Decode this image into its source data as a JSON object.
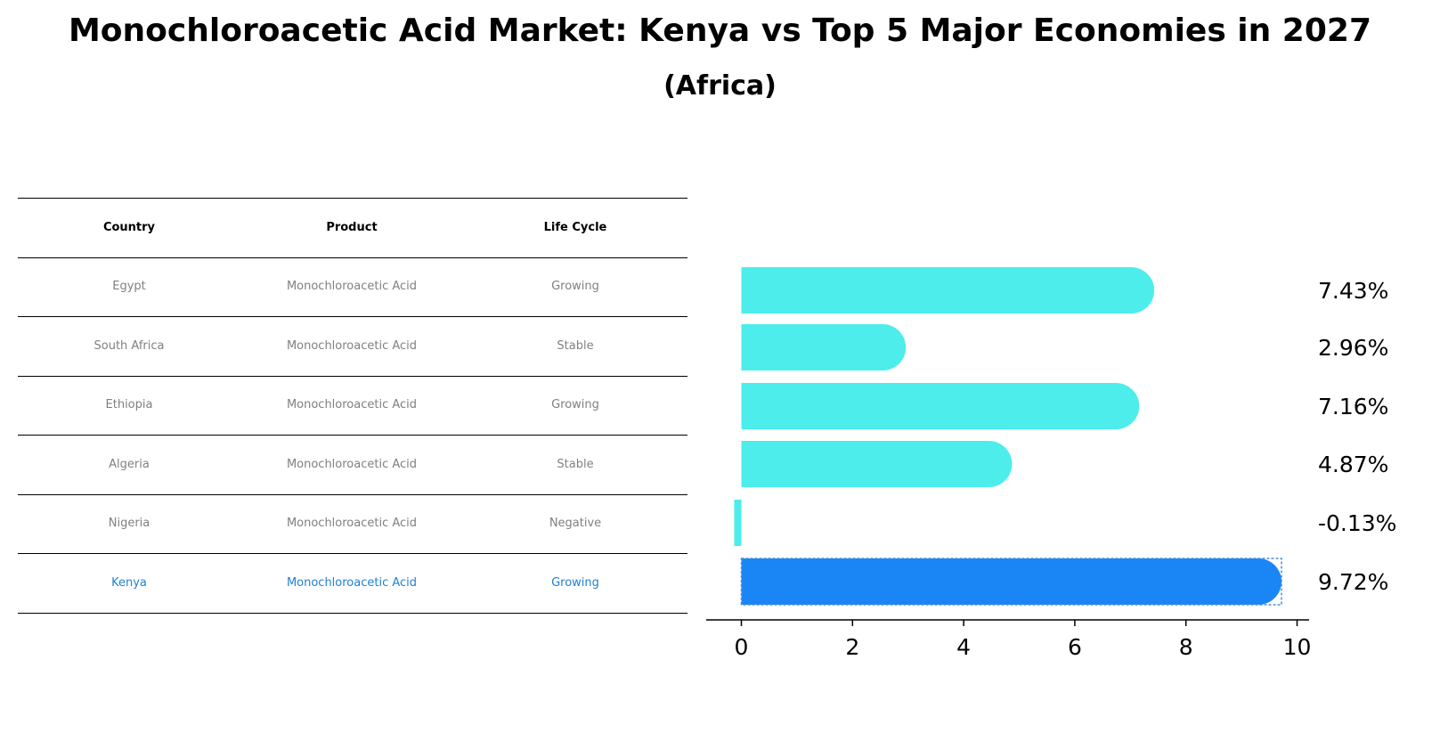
{
  "title": "Monochloroacetic Acid Market: Kenya vs Top 5 Major Economies in 2027",
  "subtitle": "(Africa)",
  "table": {
    "headers": [
      "Country",
      "Product",
      "Life Cycle"
    ],
    "rows": [
      {
        "country": "Egypt",
        "product": "Monochloroacetic Acid",
        "life_cycle": "Growing"
      },
      {
        "country": "South Africa",
        "product": "Monochloroacetic Acid",
        "life_cycle": "Stable"
      },
      {
        "country": "Ethiopia",
        "product": "Monochloroacetic Acid",
        "life_cycle": "Growing"
      },
      {
        "country": "Algeria",
        "product": "Monochloroacetic Acid",
        "life_cycle": "Stable"
      },
      {
        "country": "Nigeria",
        "product": "Monochloroacetic Acid",
        "life_cycle": "Negative"
      },
      {
        "country": "Kenya",
        "product": "Monochloroacetic Acid",
        "life_cycle": "Growing"
      }
    ]
  },
  "chart_data": {
    "type": "bar",
    "orientation": "horizontal",
    "categories": [
      "Egypt",
      "South Africa",
      "Ethiopia",
      "Algeria",
      "Nigeria",
      "Kenya"
    ],
    "values": [
      7.43,
      2.96,
      7.16,
      4.87,
      -0.13,
      9.72
    ],
    "value_labels": [
      "7.43%",
      "2.96%",
      "7.16%",
      "4.87%",
      "-0.13%",
      "9.72%"
    ],
    "highlight": "Kenya",
    "xlim": [
      -0.6,
      10.2
    ],
    "xticks": [
      0,
      2,
      4,
      6,
      8,
      10
    ],
    "colors": {
      "default": "#4cedeb",
      "highlight": "#1a85f5"
    },
    "grid": false
  }
}
